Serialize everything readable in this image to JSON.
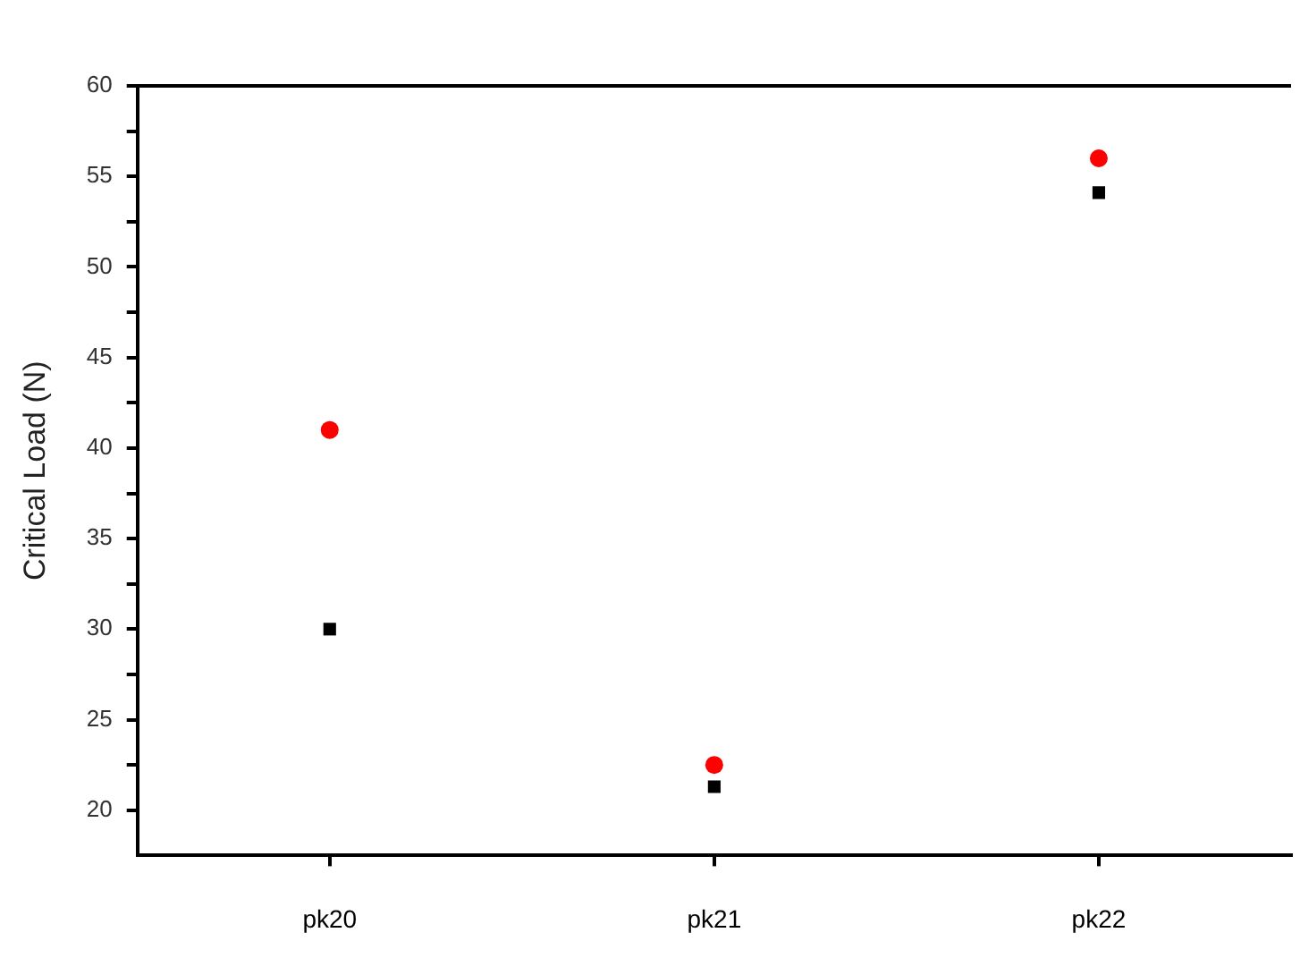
{
  "chart_data": {
    "type": "scatter",
    "ylabel": "Critical Load (N)",
    "categories": [
      "pk20",
      "pk21",
      "pk22"
    ],
    "series": [
      {
        "color": "#000000",
        "marker": "square",
        "values": [
          30,
          21.3,
          54.1
        ]
      },
      {
        "color": "#ff0000",
        "marker": "circle",
        "values": [
          41,
          22.5,
          56
        ]
      }
    ],
    "ylim": [
      17.5,
      60
    ],
    "yticks": [
      20,
      {
        "value": 22.5,
        "label": null
      },
      25,
      {
        "value": 27.5,
        "label": null
      },
      30,
      {
        "value": 32.5,
        "label": null
      },
      35,
      {
        "value": 37.5,
        "label": null
      },
      40,
      {
        "value": 42.5,
        "label": null
      },
      45,
      {
        "value": 47.5,
        "label": null
      },
      50,
      {
        "value": 52.5,
        "label": null
      },
      55,
      {
        "value": 57.5,
        "label": null
      },
      60
    ],
    "grid": false,
    "legend": false
  }
}
